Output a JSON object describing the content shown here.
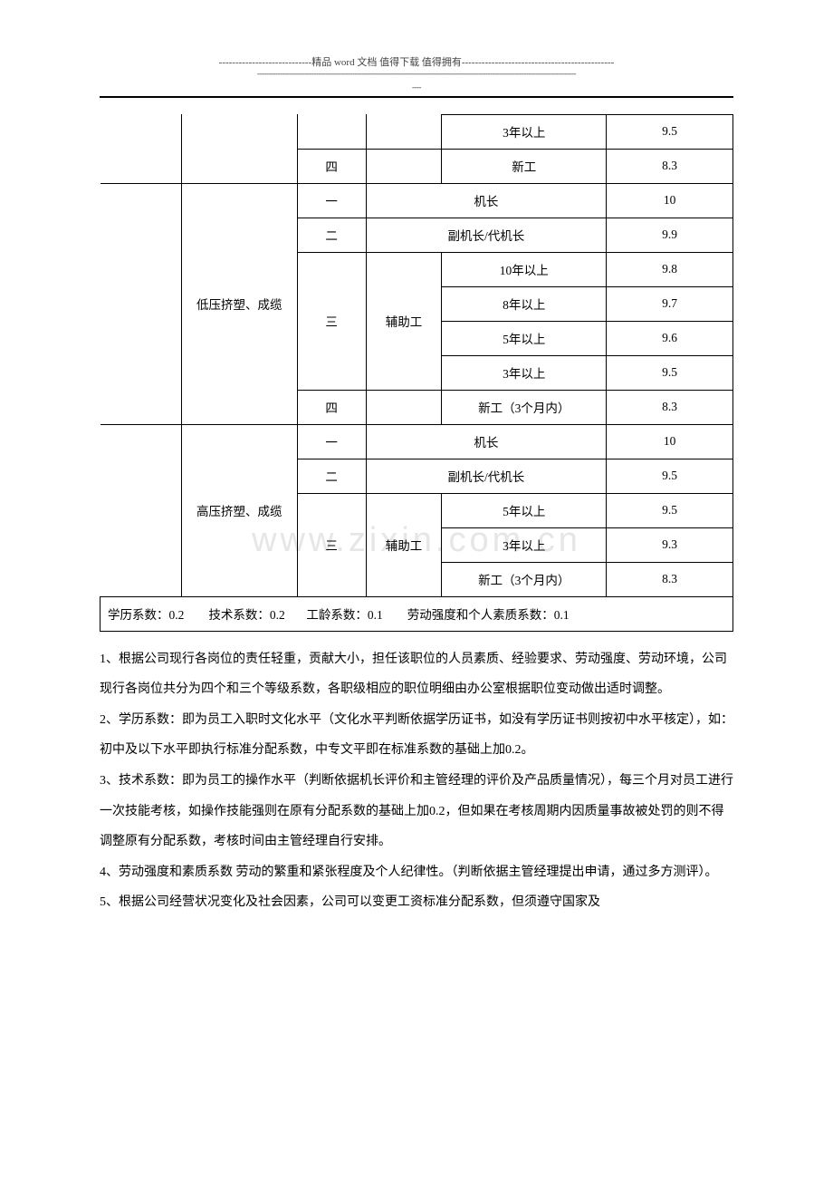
{
  "header": {
    "top_line": "----------------------------精品 word 文档  值得下载  值得拥有----------------------------------------------",
    "sub_line": "---------------------------------------------------------------------------------------------------------------------------------------------",
    "sub_line2": "----"
  },
  "watermark": "www.zixin.com.cn",
  "table": {
    "rows": [
      {
        "c": [
          "",
          "",
          "",
          "",
          "3年以上",
          "9.5"
        ],
        "spans": {
          "0": {
            "rs": 2,
            "open": [
              "l",
              "t"
            ]
          },
          "1": {
            "rs": 2,
            "open": [
              "t"
            ]
          },
          "2": {
            "open": [
              "t"
            ]
          },
          "3": {
            "open": [
              "t"
            ]
          }
        }
      },
      {
        "c": [
          null,
          null,
          "四",
          "",
          "新工",
          "8.3"
        ]
      },
      {
        "c": [
          "",
          "低压挤塑、成缆",
          "一",
          "机长",
          null,
          "10"
        ],
        "spans": {
          "0": {
            "rs": 7,
            "open": [
              "l"
            ]
          },
          "1": {
            "rs": 7
          },
          "3": {
            "cs": 2
          }
        }
      },
      {
        "c": [
          null,
          null,
          "二",
          "副机长/代机长",
          null,
          "9.9"
        ],
        "spans": {
          "3": {
            "cs": 2
          }
        }
      },
      {
        "c": [
          null,
          null,
          "三",
          "辅助工",
          "10年以上",
          "9.8"
        ],
        "spans": {
          "2": {
            "rs": 4
          },
          "3": {
            "rs": 4
          }
        }
      },
      {
        "c": [
          null,
          null,
          null,
          null,
          "8年以上",
          "9.7"
        ]
      },
      {
        "c": [
          null,
          null,
          null,
          null,
          "5年以上",
          "9.6"
        ]
      },
      {
        "c": [
          null,
          null,
          null,
          null,
          "3年以上",
          "9.5"
        ]
      },
      {
        "c": [
          null,
          null,
          "四",
          "",
          "新工（3个月内）",
          "8.3"
        ]
      },
      {
        "c": [
          "",
          "高压挤塑、成缆",
          "一",
          "机长",
          null,
          "10"
        ],
        "spans": {
          "0": {
            "rs": 5,
            "open": [
              "l"
            ]
          },
          "1": {
            "rs": 5
          },
          "3": {
            "cs": 2
          }
        }
      },
      {
        "c": [
          null,
          null,
          "二",
          "副机长/代机长",
          null,
          "9.5"
        ],
        "spans": {
          "3": {
            "cs": 2
          }
        }
      },
      {
        "c": [
          null,
          null,
          "三",
          "辅助工",
          "5年以上",
          "9.5"
        ],
        "spans": {
          "2": {
            "rs": 3
          },
          "3": {
            "rs": 3
          }
        }
      },
      {
        "c": [
          null,
          null,
          null,
          null,
          "3年以上",
          "9.3"
        ]
      },
      {
        "c": [
          null,
          null,
          null,
          null,
          "新工（3个月内）",
          "8.3"
        ]
      }
    ],
    "footer": "学历系数：0.2        技术系数：0.2       工龄系数：0.1        劳动强度和个人素质系数：0.1",
    "col_widths": [
      "90px",
      "128px",
      "76px",
      "84px",
      "182px",
      "140px"
    ]
  },
  "paragraphs": [
    "1、根据公司现行各岗位的责任轻重，贡献大小，担任该职位的人员素质、经验要求、劳动强度、劳动环境，公司现行各岗位共分为四个和三个等级系数，各职级相应的职位明细由办公室根据职位变动做出适时调整。",
    "2、学历系数：即为员工入职时文化水平（文化水平判断依据学历证书，如没有学历证书则按初中水平核定），如：初中及以下水平即执行标准分配系数，中专文平即在标准系数的基础上加0.2。",
    "3、技术系数：即为员工的操作水平（判断依据机长评价和主管经理的评价及产品质量情况），每三个月对员工进行一次技能考核，如操作技能强则在原有分配系数的基础上加0.2，但如果在考核周期内因质量事故被处罚的则不得调整原有分配系数，考核时间由主管经理自行安排。",
    "4、劳动强度和素质系数  劳动的繁重和紧张程度及个人纪律性。（判断依据主管经理提出申请，通过多方测评）。",
    "5、根据公司经营状况变化及社会因素，公司可以变更工资标准分配系数，但须遵守国家及"
  ]
}
